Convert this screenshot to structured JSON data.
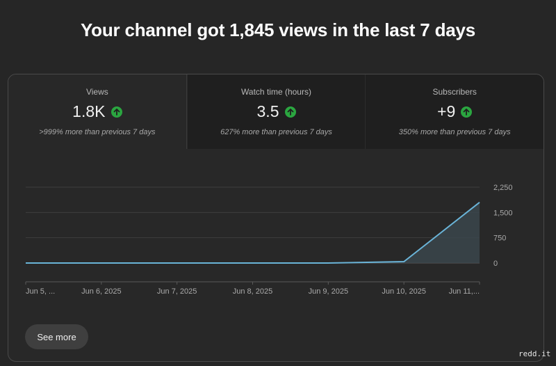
{
  "headline": "Your channel got 1,845 views in the last 7 days",
  "tabs": [
    {
      "label": "Views",
      "value": "1.8K",
      "trend": "up",
      "comparison": ">999% more than previous 7 days",
      "active": true
    },
    {
      "label": "Watch time (hours)",
      "value": "3.5",
      "trend": "up",
      "comparison": "627% more than previous 7 days",
      "active": false
    },
    {
      "label": "Subscribers",
      "value": "+9",
      "trend": "up",
      "comparison": "350% more than previous 7 days",
      "active": false
    }
  ],
  "colors": {
    "line": "#6ab4d8",
    "fill": "#3b474e",
    "trend_up": "#2ba640",
    "gridline": "#3e3e3e"
  },
  "chart_data": {
    "type": "area",
    "categories": [
      "Jun 5, ...",
      "Jun 6, 2025",
      "Jun 7, 2025",
      "Jun 8, 2025",
      "Jun 9, 2025",
      "Jun 10, 2025",
      "Jun 11,..."
    ],
    "series": [
      {
        "values": [
          0,
          0,
          0,
          0,
          0,
          40,
          1800
        ]
      }
    ],
    "yticks": [
      "2,250",
      "1,500",
      "750",
      "0"
    ],
    "ytick_values": [
      2250,
      1500,
      750,
      0
    ],
    "ylim": [
      0,
      2250
    ],
    "grid": true
  },
  "see_more_label": "See more",
  "watermark": "redd.it"
}
